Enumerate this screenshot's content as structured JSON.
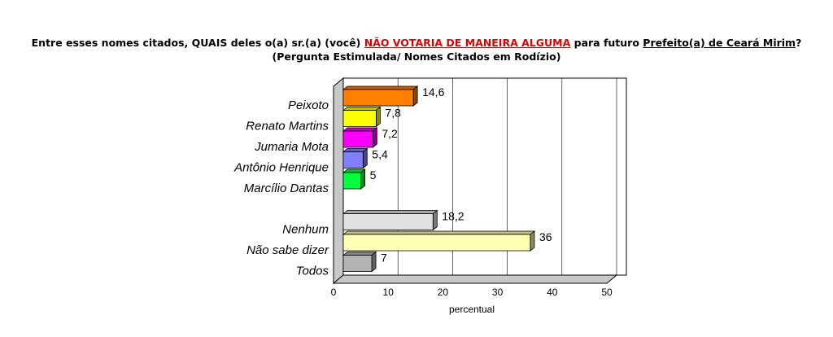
{
  "title": {
    "part1": "Entre esses nomes citados, QUAIS deles o(a) sr.(a) (você) ",
    "highlight": "NÃO VOTARIA DE MANEIRA ALGUMA",
    "part2": " para futuro ",
    "underlined": "Prefeito(a) de Ceará Mirim",
    "part3": "?",
    "line2": "(Pergunta Estimulada/ Nomes Citados em Rodízio)"
  },
  "chart_data": {
    "type": "bar",
    "orientation": "horizontal",
    "categories": [
      "Peixoto",
      "Renato Martins",
      "Jumaria Mota",
      "Antônio Henrique",
      "Marcílio Dantas",
      "Nenhum",
      "Não sabe dizer",
      "Todos"
    ],
    "values": [
      14.6,
      7.8,
      7.2,
      5.4,
      5,
      18.2,
      36,
      7
    ],
    "value_labels": [
      "14,6",
      "7,8",
      "7,2",
      "5,4",
      "5",
      "18,2",
      "36",
      "7"
    ],
    "colors": [
      "#ff7f00",
      "#ffff00",
      "#ff00ff",
      "#8080ff",
      "#00ff40",
      "#e0e0e0",
      "#ffffb3",
      "#b3b3b3"
    ],
    "xlabel": "percentual",
    "ylabel": "",
    "xlim": [
      0,
      50
    ],
    "xticks": [
      "0",
      "10",
      "20",
      "30",
      "40",
      "50"
    ],
    "grid": true
  }
}
